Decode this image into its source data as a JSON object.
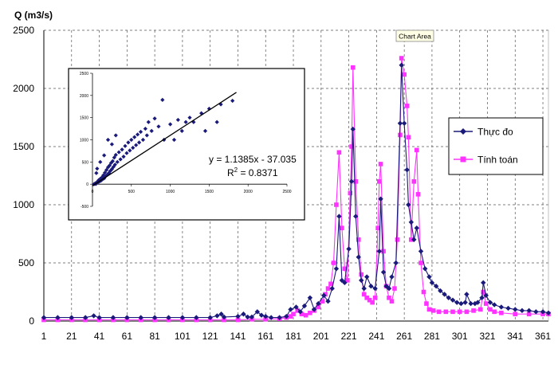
{
  "chart_data": {
    "type": "line",
    "ylabel": "Q (m3/s)",
    "tooltip": "Chart Area",
    "x_ticks": [
      1,
      21,
      41,
      61,
      81,
      101,
      121,
      141,
      161,
      181,
      201,
      221,
      241,
      261,
      281,
      301,
      321,
      341,
      361
    ],
    "xlim": [
      1,
      365
    ],
    "y_ticks": [
      0,
      500,
      1000,
      1500,
      2000,
      2500
    ],
    "ylim": [
      0,
      2500
    ],
    "grid": true,
    "legend_position": "right",
    "colors": {
      "observed": "#1a1a7a",
      "simulated": "#ff33ff"
    },
    "series": [
      {
        "name": "Thực đo",
        "marker": "diamond",
        "points": [
          [
            1,
            30
          ],
          [
            11,
            30
          ],
          [
            21,
            30
          ],
          [
            31,
            30
          ],
          [
            37,
            45
          ],
          [
            41,
            30
          ],
          [
            51,
            30
          ],
          [
            61,
            30
          ],
          [
            71,
            30
          ],
          [
            81,
            30
          ],
          [
            91,
            30
          ],
          [
            101,
            30
          ],
          [
            111,
            30
          ],
          [
            121,
            30
          ],
          [
            126,
            45
          ],
          [
            129,
            60
          ],
          [
            131,
            35
          ],
          [
            141,
            40
          ],
          [
            145,
            60
          ],
          [
            148,
            35
          ],
          [
            151,
            35
          ],
          [
            155,
            80
          ],
          [
            158,
            50
          ],
          [
            161,
            40
          ],
          [
            165,
            30
          ],
          [
            171,
            30
          ],
          [
            176,
            40
          ],
          [
            179,
            100
          ],
          [
            183,
            120
          ],
          [
            186,
            80
          ],
          [
            189,
            130
          ],
          [
            193,
            200
          ],
          [
            196,
            100
          ],
          [
            199,
            150
          ],
          [
            203,
            220
          ],
          [
            206,
            170
          ],
          [
            209,
            280
          ],
          [
            212,
            450
          ],
          [
            214,
            900
          ],
          [
            216,
            350
          ],
          [
            218,
            330
          ],
          [
            221,
            620
          ],
          [
            223,
            1200
          ],
          [
            224,
            1650
          ],
          [
            226,
            900
          ],
          [
            228,
            550
          ],
          [
            230,
            350
          ],
          [
            232,
            280
          ],
          [
            234,
            380
          ],
          [
            237,
            300
          ],
          [
            240,
            280
          ],
          [
            243,
            600
          ],
          [
            244,
            1050
          ],
          [
            246,
            420
          ],
          [
            248,
            300
          ],
          [
            250,
            280
          ],
          [
            252,
            380
          ],
          [
            255,
            500
          ],
          [
            258,
            1700
          ],
          [
            259,
            2200
          ],
          [
            261,
            1700
          ],
          [
            263,
            1300
          ],
          [
            264,
            1000
          ],
          [
            266,
            850
          ],
          [
            268,
            700
          ],
          [
            270,
            800
          ],
          [
            273,
            600
          ],
          [
            276,
            450
          ],
          [
            279,
            380
          ],
          [
            281,
            330
          ],
          [
            284,
            300
          ],
          [
            287,
            260
          ],
          [
            290,
            230
          ],
          [
            293,
            200
          ],
          [
            296,
            180
          ],
          [
            299,
            160
          ],
          [
            302,
            150
          ],
          [
            305,
            160
          ],
          [
            306,
            230
          ],
          [
            309,
            150
          ],
          [
            312,
            150
          ],
          [
            314,
            160
          ],
          [
            317,
            200
          ],
          [
            318,
            330
          ],
          [
            320,
            220
          ],
          [
            323,
            160
          ],
          [
            326,
            140
          ],
          [
            331,
            120
          ],
          [
            336,
            110
          ],
          [
            341,
            100
          ],
          [
            346,
            90
          ],
          [
            351,
            90
          ],
          [
            356,
            80
          ],
          [
            361,
            80
          ],
          [
            365,
            70
          ]
        ]
      },
      {
        "name": "Tính toán",
        "marker": "square",
        "points": [
          [
            1,
            10
          ],
          [
            11,
            10
          ],
          [
            21,
            10
          ],
          [
            31,
            10
          ],
          [
            41,
            10
          ],
          [
            51,
            10
          ],
          [
            61,
            10
          ],
          [
            71,
            10
          ],
          [
            81,
            10
          ],
          [
            91,
            10
          ],
          [
            101,
            10
          ],
          [
            111,
            10
          ],
          [
            121,
            10
          ],
          [
            131,
            10
          ],
          [
            141,
            10
          ],
          [
            151,
            15
          ],
          [
            161,
            15
          ],
          [
            171,
            20
          ],
          [
            176,
            30
          ],
          [
            179,
            40
          ],
          [
            181,
            60
          ],
          [
            184,
            90
          ],
          [
            187,
            60
          ],
          [
            190,
            50
          ],
          [
            193,
            70
          ],
          [
            196,
            90
          ],
          [
            199,
            120
          ],
          [
            202,
            170
          ],
          [
            204,
            230
          ],
          [
            206,
            280
          ],
          [
            208,
            320
          ],
          [
            210,
            500
          ],
          [
            212,
            1000
          ],
          [
            214,
            1450
          ],
          [
            216,
            800
          ],
          [
            218,
            450
          ],
          [
            220,
            350
          ],
          [
            222,
            1100
          ],
          [
            223,
            1500
          ],
          [
            224,
            2180
          ],
          [
            226,
            1200
          ],
          [
            228,
            700
          ],
          [
            230,
            400
          ],
          [
            232,
            230
          ],
          [
            234,
            200
          ],
          [
            236,
            180
          ],
          [
            238,
            160
          ],
          [
            240,
            200
          ],
          [
            242,
            800
          ],
          [
            243,
            1200
          ],
          [
            244,
            1350
          ],
          [
            246,
            600
          ],
          [
            248,
            300
          ],
          [
            250,
            200
          ],
          [
            252,
            170
          ],
          [
            254,
            280
          ],
          [
            256,
            700
          ],
          [
            258,
            1600
          ],
          [
            259,
            2260
          ],
          [
            261,
            2120
          ],
          [
            263,
            1850
          ],
          [
            264,
            1580
          ],
          [
            266,
            700
          ],
          [
            268,
            1200
          ],
          [
            270,
            1470
          ],
          [
            271,
            1090
          ],
          [
            273,
            500
          ],
          [
            275,
            250
          ],
          [
            277,
            150
          ],
          [
            279,
            100
          ],
          [
            282,
            90
          ],
          [
            286,
            80
          ],
          [
            291,
            80
          ],
          [
            296,
            80
          ],
          [
            301,
            80
          ],
          [
            306,
            80
          ],
          [
            311,
            90
          ],
          [
            316,
            100
          ],
          [
            318,
            250
          ],
          [
            320,
            150
          ],
          [
            323,
            100
          ],
          [
            326,
            80
          ],
          [
            331,
            70
          ],
          [
            341,
            60
          ],
          [
            351,
            60
          ],
          [
            361,
            60
          ],
          [
            365,
            60
          ]
        ]
      }
    ],
    "inset": {
      "type": "scatter",
      "x_ticks": [
        "0",
        "500",
        "1000",
        "1500",
        "2000",
        "2500"
      ],
      "y_ticks": [
        "-500",
        "0",
        "500",
        "1000",
        "1500",
        "2000",
        "2500"
      ],
      "xlim": [
        0,
        2500
      ],
      "ylim": [
        -500,
        2500
      ],
      "trendline": {
        "slope": 1.1385,
        "intercept": -37.035
      },
      "equation": "y = 1.1385x - 37.035",
      "r2_prefix": "R",
      "r2_exp": "2",
      "r2_value": " = 0.8371",
      "points": [
        [
          20,
          0
        ],
        [
          30,
          10
        ],
        [
          40,
          20
        ],
        [
          45,
          5
        ],
        [
          55,
          30
        ],
        [
          60,
          50
        ],
        [
          70,
          40
        ],
        [
          80,
          90
        ],
        [
          90,
          60
        ],
        [
          100,
          120
        ],
        [
          110,
          80
        ],
        [
          120,
          150
        ],
        [
          130,
          110
        ],
        [
          140,
          200
        ],
        [
          150,
          130
        ],
        [
          160,
          260
        ],
        [
          170,
          180
        ],
        [
          180,
          320
        ],
        [
          190,
          210
        ],
        [
          200,
          380
        ],
        [
          210,
          250
        ],
        [
          220,
          420
        ],
        [
          230,
          300
        ],
        [
          240,
          480
        ],
        [
          250,
          340
        ],
        [
          260,
          520
        ],
        [
          270,
          390
        ],
        [
          280,
          600
        ],
        [
          290,
          440
        ],
        [
          300,
          660
        ],
        [
          320,
          500
        ],
        [
          340,
          720
        ],
        [
          360,
          560
        ],
        [
          380,
          780
        ],
        [
          400,
          620
        ],
        [
          420,
          860
        ],
        [
          440,
          700
        ],
        [
          460,
          940
        ],
        [
          480,
          760
        ],
        [
          500,
          1000
        ],
        [
          520,
          820
        ],
        [
          540,
          1060
        ],
        [
          560,
          880
        ],
        [
          580,
          1120
        ],
        [
          600,
          940
        ],
        [
          620,
          1180
        ],
        [
          650,
          1000
        ],
        [
          680,
          1250
        ],
        [
          700,
          1100
        ],
        [
          720,
          1400
        ],
        [
          760,
          1200
        ],
        [
          800,
          1480
        ],
        [
          850,
          1300
        ],
        [
          900,
          1900
        ],
        [
          920,
          1000
        ],
        [
          1000,
          1350
        ],
        [
          1050,
          1000
        ],
        [
          1100,
          1450
        ],
        [
          1150,
          1200
        ],
        [
          1200,
          1400
        ],
        [
          1250,
          1500
        ],
        [
          1300,
          1400
        ],
        [
          1400,
          1600
        ],
        [
          1450,
          1200
        ],
        [
          1500,
          1700
        ],
        [
          1600,
          1400
        ],
        [
          1650,
          1800
        ],
        [
          1800,
          1880
        ],
        [
          250,
          900
        ],
        [
          200,
          1000
        ],
        [
          300,
          1100
        ],
        [
          150,
          650
        ],
        [
          100,
          500
        ],
        [
          60,
          350
        ],
        [
          50,
          250
        ]
      ]
    }
  }
}
